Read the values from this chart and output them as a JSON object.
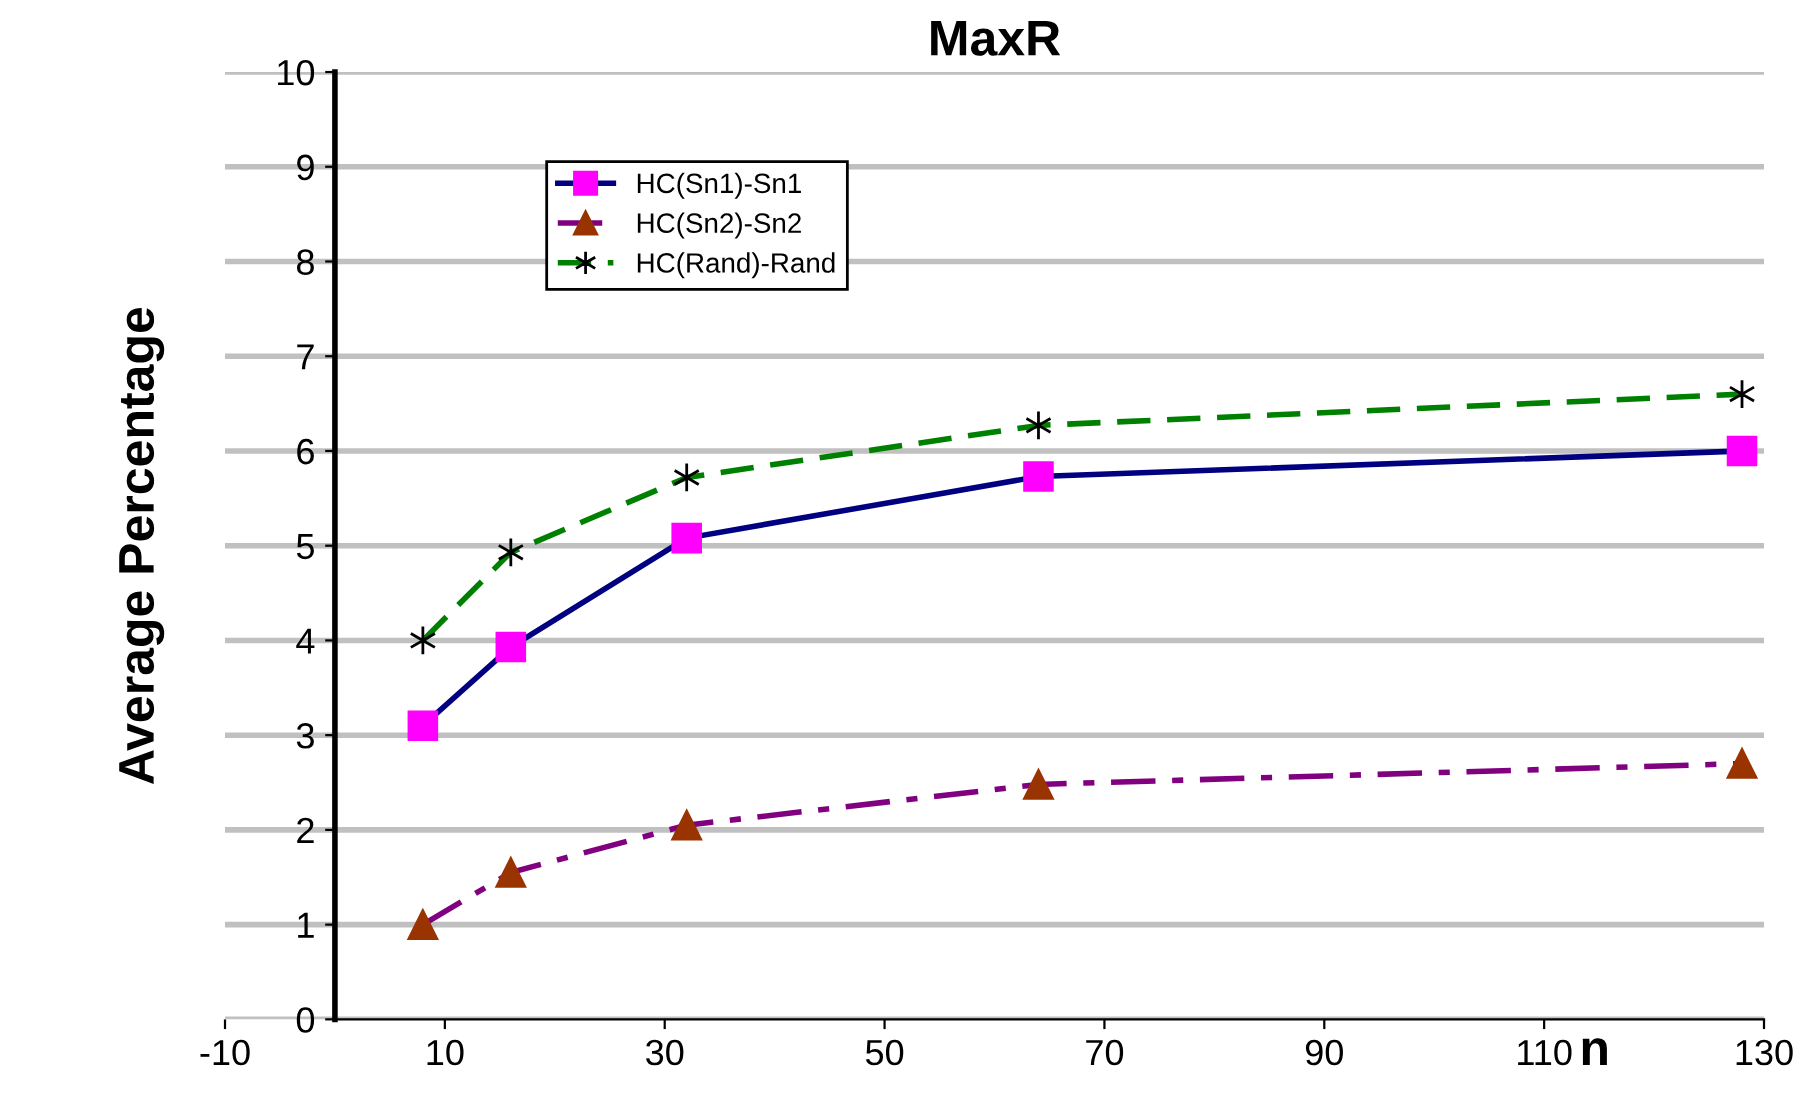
{
  "chart_data": {
    "type": "line",
    "title": "MaxR",
    "xlabel": "n",
    "ylabel": "Average Percentage",
    "x": [
      8,
      16,
      32,
      64,
      128
    ],
    "series": [
      {
        "name": "HC(Sn1)-Sn1",
        "color": "#000080",
        "colors": [
          "#ff00ff",
          "#ff00ff",
          "#ff00ff",
          "#ff00ff",
          "#ff00ff"
        ],
        "marker": "square",
        "line_style": "solid",
        "values": [
          3.1,
          3.93,
          5.08,
          5.73,
          6.0
        ]
      },
      {
        "name": "HC(Sn2)-Sn2",
        "color": "#800080",
        "colors": [
          "#993300",
          "#993300",
          "#993300",
          "#993300",
          "#993300"
        ],
        "marker": "triangle",
        "line_style": "dashdot",
        "values": [
          1.0,
          1.55,
          2.05,
          2.48,
          2.7
        ]
      },
      {
        "name": "HC(Rand)-Rand",
        "color": "#008000",
        "colors": [
          "#000000",
          "#000000",
          "#000000",
          "#000000",
          "#000000"
        ],
        "marker": "cross",
        "line_style": "dashed",
        "values": [
          4.0,
          4.93,
          5.72,
          6.27,
          6.6
        ]
      }
    ],
    "xlim": [
      -10,
      130
    ],
    "xticks": [
      -10,
      10,
      30,
      50,
      70,
      90,
      110,
      130
    ],
    "ylim": [
      0,
      10
    ],
    "yticks": [
      0,
      1,
      2,
      3,
      4,
      5,
      6,
      7,
      8,
      9,
      10
    ],
    "grid": "y",
    "legend": "top left"
  }
}
